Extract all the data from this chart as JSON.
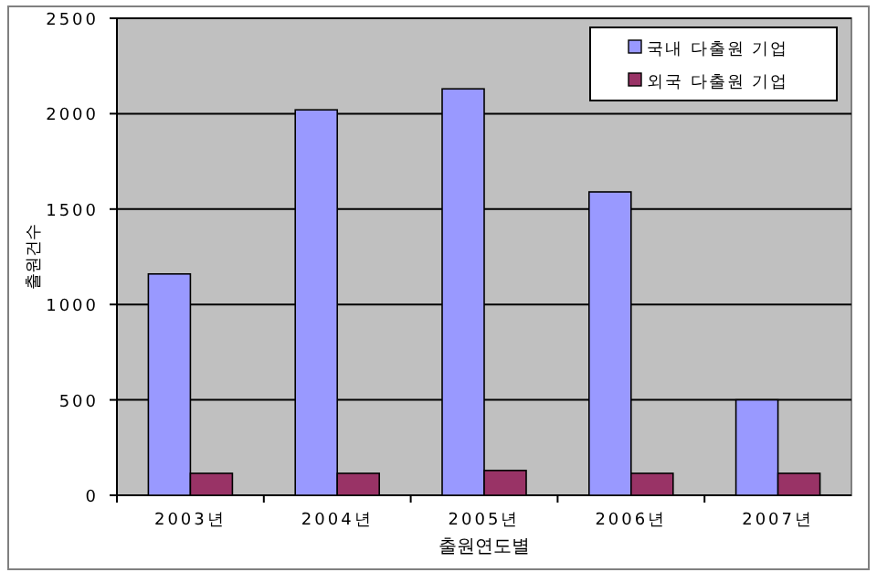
{
  "chart_data": {
    "type": "bar",
    "xlabel": "출원연도별",
    "ylabel": "출원건수",
    "categories": [
      "2003년",
      "2004년",
      "2005년",
      "2006년",
      "2007년"
    ],
    "series": [
      {
        "name": "국내 다출원 기업",
        "color": "#9999ff",
        "values": [
          1160,
          2020,
          2130,
          1590,
          500
        ]
      },
      {
        "name": "외국 다출원 기업",
        "color": "#993366",
        "values": [
          115,
          115,
          130,
          115,
          115
        ]
      }
    ],
    "ylim": [
      0,
      2500
    ],
    "yticks": [
      0,
      500,
      1000,
      1500,
      2000,
      2500
    ],
    "grid": "y",
    "legend": "top right"
  }
}
